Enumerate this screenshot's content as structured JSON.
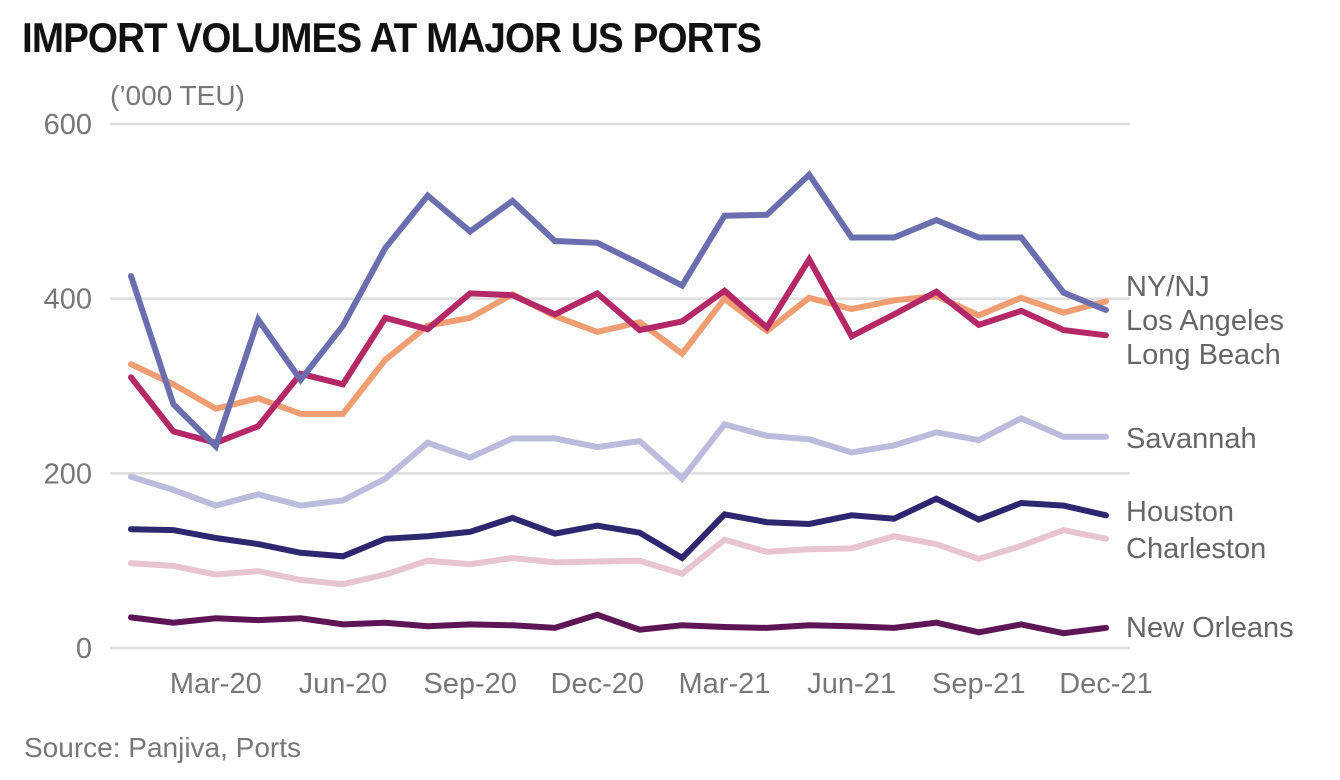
{
  "title": "IMPORT VOLUMES AT MAJOR US PORTS",
  "unit": "(’000 TEU)",
  "source": "Source: Panjiva, Ports",
  "chart_data": {
    "type": "line",
    "title": "IMPORT VOLUMES AT MAJOR US PORTS",
    "ylabel": "(’000 TEU)",
    "ylim": [
      0,
      600
    ],
    "yticks": [
      0,
      200,
      400,
      600
    ],
    "grid": true,
    "x": [
      "Jan-20",
      "Feb-20",
      "Mar-20",
      "Apr-20",
      "May-20",
      "Jun-20",
      "Jul-20",
      "Aug-20",
      "Sep-20",
      "Oct-20",
      "Nov-20",
      "Dec-20",
      "Jan-21",
      "Feb-21",
      "Mar-21",
      "Apr-21",
      "May-21",
      "Jun-21",
      "Jul-21",
      "Aug-21",
      "Sep-21",
      "Oct-21",
      "Nov-21",
      "Dec-21"
    ],
    "xtick_labels": [
      "Mar-20",
      "Jun-20",
      "Sep-20",
      "Dec-20",
      "Mar-21",
      "Jun-21",
      "Sep-21",
      "Dec-21"
    ],
    "xtick_index": [
      2,
      5,
      8,
      11,
      14,
      17,
      20,
      23
    ],
    "legend": "direct-labels-right",
    "series": [
      {
        "name": "Los Angeles",
        "color": "#EE9E72",
        "values": [
          325,
          302,
          274,
          286,
          268,
          268,
          330,
          369,
          378,
          405,
          380,
          362,
          373,
          337,
          400,
          363,
          401,
          388,
          398,
          403,
          381,
          401,
          384,
          397
        ]
      },
      {
        "name": "Long Beach",
        "color": "#B42868",
        "values": [
          310,
          248,
          235,
          254,
          314,
          302,
          378,
          365,
          406,
          404,
          382,
          406,
          364,
          374,
          409,
          367,
          445,
          357,
          382,
          408,
          370,
          386,
          364,
          358
        ]
      },
      {
        "name": "NY/NJ",
        "color": "#6A6EAF",
        "values": [
          426,
          279,
          231,
          376,
          307,
          369,
          458,
          518,
          477,
          512,
          466,
          464,
          440,
          415,
          495,
          496,
          542,
          470,
          470,
          490,
          470,
          470,
          407,
          387
        ]
      },
      {
        "name": "Savannah",
        "color": "#BCBADD",
        "values": [
          196,
          181,
          163,
          176,
          163,
          169,
          194,
          235,
          218,
          240,
          240,
          230,
          237,
          194,
          256,
          243,
          239,
          224,
          232,
          247,
          238,
          263,
          242,
          242
        ]
      },
      {
        "name": "Charleston",
        "color": "#E8C3D0",
        "values": [
          97,
          94,
          84,
          88,
          78,
          73,
          84,
          100,
          96,
          103,
          98,
          99,
          100,
          85,
          124,
          110,
          113,
          114,
          128,
          119,
          102,
          117,
          135,
          125
        ]
      },
      {
        "name": "Houston",
        "color": "#2E2770",
        "values": [
          136,
          135,
          126,
          119,
          109,
          105,
          125,
          128,
          133,
          149,
          131,
          140,
          132,
          103,
          153,
          144,
          142,
          152,
          148,
          171,
          147,
          166,
          163,
          152
        ]
      },
      {
        "name": "New Orleans",
        "color": "#5E1555",
        "values": [
          35,
          29,
          34,
          32,
          34,
          27,
          29,
          25,
          27,
          26,
          23,
          38,
          21,
          26,
          24,
          23,
          26,
          25,
          23,
          29,
          18,
          27,
          17,
          23
        ]
      }
    ],
    "label_order": [
      "NY/NJ",
      "Los Angeles",
      "Long Beach",
      "Savannah",
      "Houston",
      "Charleston",
      "New Orleans"
    ]
  }
}
